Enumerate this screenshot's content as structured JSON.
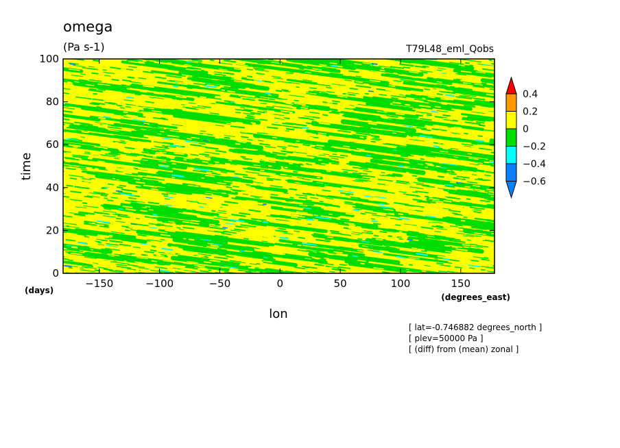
{
  "chart_data": {
    "type": "heatmap",
    "title": "omega",
    "units": "(Pa s-1)",
    "run_label": "T79L48_eml_Qobs",
    "xlabel": "lon",
    "xunits": "(degrees_east)",
    "ylabel": "time",
    "yunits": "(days)",
    "xlim": [
      -180,
      178
    ],
    "ylim": [
      0,
      100
    ],
    "x_ticks": [
      -150,
      -100,
      -50,
      0,
      50,
      100,
      150
    ],
    "x_tick_labels": [
      "−150",
      "−100",
      "−50",
      "0",
      "50",
      "100",
      "150"
    ],
    "y_ticks": [
      0,
      20,
      40,
      60,
      80,
      100
    ],
    "y_tick_labels": [
      "0",
      "20",
      "40",
      "60",
      "80",
      "100"
    ],
    "colorbar": {
      "levels": [
        -0.6,
        -0.4,
        -0.2,
        0,
        0.2,
        0.4
      ],
      "labels": [
        "−0.6",
        "−0.4",
        "−0.2",
        "0",
        "0.2",
        "0.4"
      ],
      "colors": [
        "#0a7fff",
        "#00ffff",
        "#00dd00",
        "#ffff00",
        "#ff9900",
        "#ff0000"
      ],
      "extend": "both"
    },
    "field_description": "Fine-scale pattern dominated by values between -0.2 and 0.2 Pa/s (green and yellow) with sparse streaks between -0.6 and -0.2; streaks tilt downward toward the east (westward-propagating signals)",
    "green_fraction_approx": 0.45,
    "cyan_fraction_approx": 0.015,
    "blue_fraction_approx": 0.002
  },
  "annotations": [
    "[ lat=-0.746882 degrees_north ]",
    "[ plev=50000 Pa ]",
    "[ (diff) from (mean) zonal ]"
  ]
}
